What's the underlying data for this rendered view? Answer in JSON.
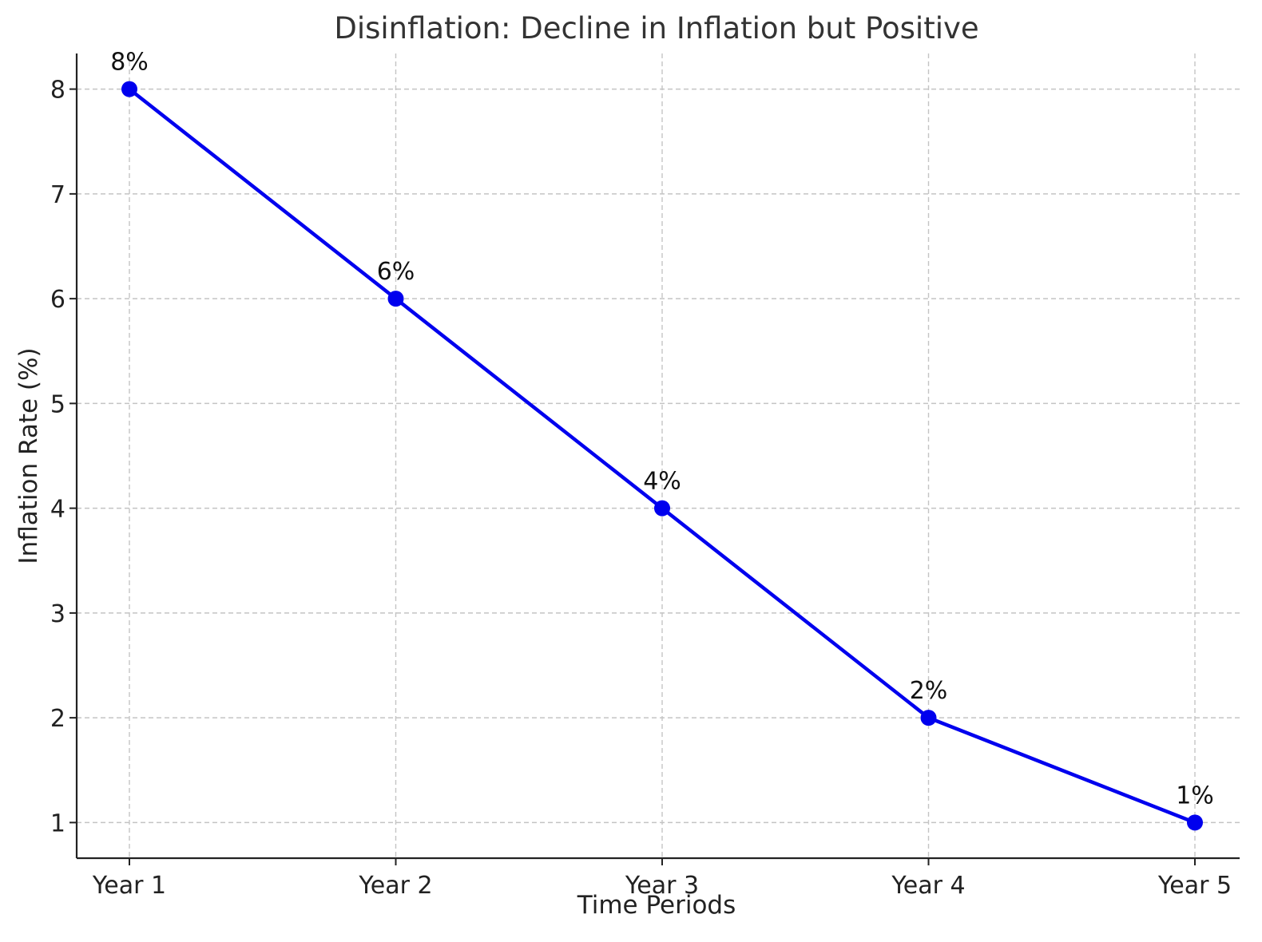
{
  "chart_data": {
    "type": "line",
    "title": "Disinflation: Decline in Inflation but Positive",
    "xlabel": "Time Periods",
    "ylabel": "Inflation Rate (%)",
    "categories": [
      "Year 1",
      "Year 2",
      "Year 3",
      "Year 4",
      "Year 5"
    ],
    "series": [
      {
        "values": [
          8,
          6,
          4,
          2,
          1
        ],
        "color": "#0000ee",
        "marker": "circle"
      }
    ],
    "data_labels": [
      "8%",
      "6%",
      "4%",
      "2%",
      "1%"
    ],
    "yticks": [
      1,
      2,
      3,
      4,
      5,
      6,
      7,
      8
    ],
    "ylim": [
      0.66,
      8.34
    ],
    "grid": true,
    "grid_style": "dashed",
    "legend": "none"
  }
}
